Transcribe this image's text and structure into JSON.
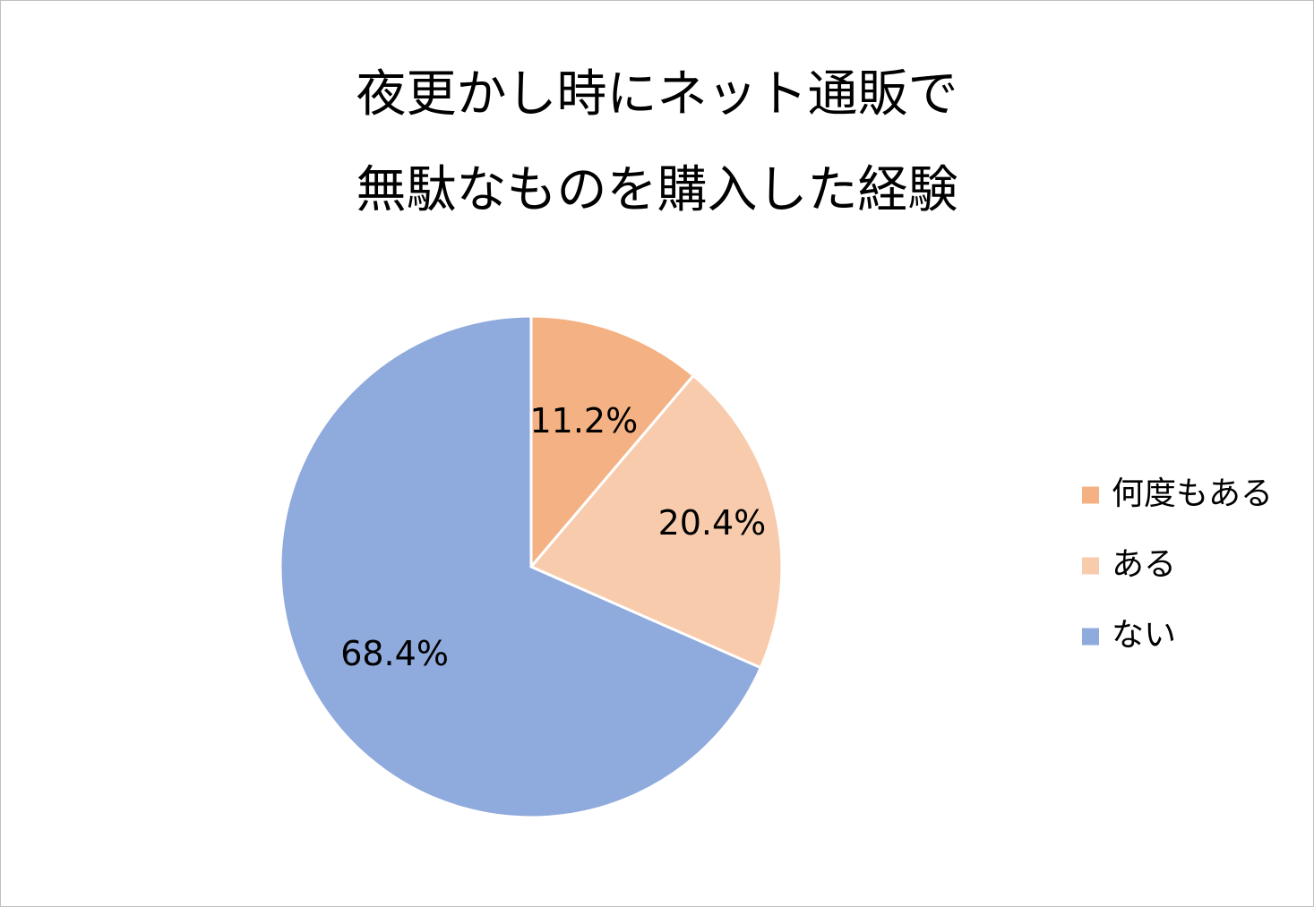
{
  "chart_data": {
    "type": "pie",
    "title_lines": [
      "夜更かし時にネット通販で",
      "無駄なものを購入した経験"
    ],
    "categories": [
      "何度もある",
      "ある",
      "ない"
    ],
    "values": [
      11.2,
      20.4,
      68.4
    ],
    "data_labels": [
      "11.2%",
      "20.4%",
      "68.4%"
    ],
    "colors": [
      "#f4b183",
      "#f8cbad",
      "#8faadc"
    ],
    "legend_position": "right"
  }
}
